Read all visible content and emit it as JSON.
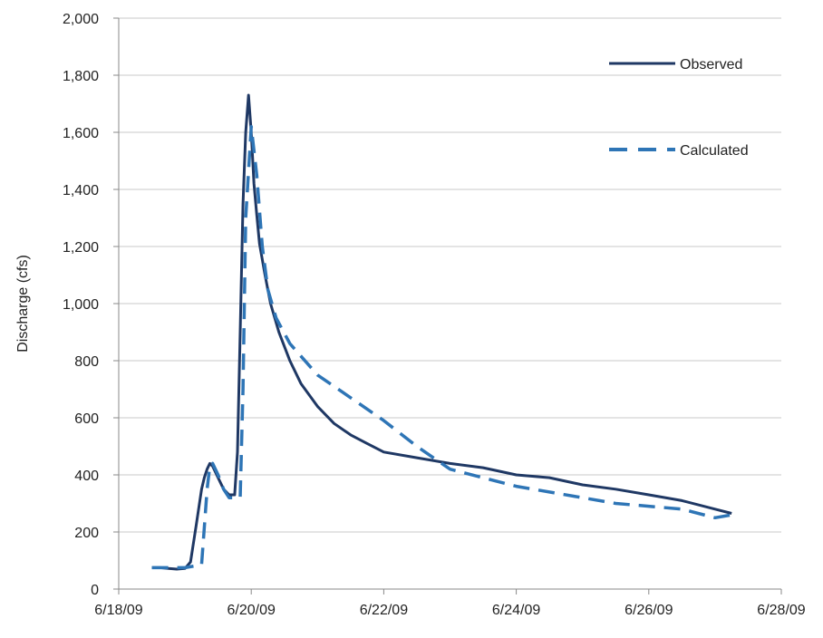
{
  "chart_data": {
    "type": "line",
    "title": "",
    "xlabel": "",
    "ylabel": "Discharge (cfs)",
    "x_axis": {
      "type": "date",
      "min": "2009-06-18",
      "max": "2009-06-28",
      "ticks": [
        "2009-06-18",
        "2009-06-20",
        "2009-06-22",
        "2009-06-24",
        "2009-06-26",
        "2009-06-28"
      ],
      "tick_labels": [
        "6/18/09",
        "6/20/09",
        "6/22/09",
        "6/24/09",
        "6/26/09",
        "6/28/09"
      ]
    },
    "y_axis": {
      "min": 0,
      "max": 2000,
      "ticks": [
        0,
        200,
        400,
        600,
        800,
        1000,
        1200,
        1400,
        1600,
        1800,
        2000
      ],
      "tick_labels": [
        "0",
        "200",
        "400",
        "600",
        "800",
        "1,000",
        "1,200",
        "1,400",
        "1,600",
        "1,800",
        "2,000"
      ]
    },
    "grid": "horizontal",
    "legend_position": "top-right",
    "series": [
      {
        "name": "Observed",
        "color": "#1f3864",
        "style": "solid",
        "points": [
          [
            "2009-06-18 12:00",
            75
          ],
          [
            "2009-06-18 15:00",
            75
          ],
          [
            "2009-06-18 18:00",
            72
          ],
          [
            "2009-06-18 21:00",
            70
          ],
          [
            "2009-06-19 00:00",
            72
          ],
          [
            "2009-06-19 02:00",
            95
          ],
          [
            "2009-06-19 04:00",
            220
          ],
          [
            "2009-06-19 06:00",
            350
          ],
          [
            "2009-06-19 07:00",
            390
          ],
          [
            "2009-06-19 08:00",
            420
          ],
          [
            "2009-06-19 09:00",
            440
          ],
          [
            "2009-06-19 10:00",
            430
          ],
          [
            "2009-06-19 12:00",
            390
          ],
          [
            "2009-06-19 14:00",
            350
          ],
          [
            "2009-06-19 16:00",
            330
          ],
          [
            "2009-06-19 18:00",
            330
          ],
          [
            "2009-06-19 19:00",
            480
          ],
          [
            "2009-06-19 20:00",
            900
          ],
          [
            "2009-06-19 21:00",
            1350
          ],
          [
            "2009-06-19 22:00",
            1600
          ],
          [
            "2009-06-19 23:00",
            1730
          ],
          [
            "2009-06-20 00:00",
            1600
          ],
          [
            "2009-06-20 01:00",
            1420
          ],
          [
            "2009-06-20 02:00",
            1310
          ],
          [
            "2009-06-20 03:00",
            1210
          ],
          [
            "2009-06-20 05:00",
            1100
          ],
          [
            "2009-06-20 07:00",
            1000
          ],
          [
            "2009-06-20 10:00",
            900
          ],
          [
            "2009-06-20 14:00",
            800
          ],
          [
            "2009-06-20 18:00",
            720
          ],
          [
            "2009-06-21 00:00",
            640
          ],
          [
            "2009-06-21 06:00",
            580
          ],
          [
            "2009-06-21 12:00",
            540
          ],
          [
            "2009-06-21 18:00",
            510
          ],
          [
            "2009-06-22 00:00",
            480
          ],
          [
            "2009-06-22 12:00",
            460
          ],
          [
            "2009-06-23 00:00",
            440
          ],
          [
            "2009-06-23 12:00",
            425
          ],
          [
            "2009-06-24 00:00",
            400
          ],
          [
            "2009-06-24 12:00",
            390
          ],
          [
            "2009-06-25 00:00",
            365
          ],
          [
            "2009-06-25 12:00",
            350
          ],
          [
            "2009-06-26 00:00",
            330
          ],
          [
            "2009-06-26 12:00",
            310
          ],
          [
            "2009-06-27 00:00",
            280
          ],
          [
            "2009-06-27 06:00",
            265
          ]
        ]
      },
      {
        "name": "Calculated",
        "color": "#2e75b6",
        "style": "dashed",
        "points": [
          [
            "2009-06-18 12:00",
            75
          ],
          [
            "2009-06-19 00:00",
            75
          ],
          [
            "2009-06-19 06:00",
            85
          ],
          [
            "2009-06-19 08:00",
            350
          ],
          [
            "2009-06-19 09:00",
            430
          ],
          [
            "2009-06-19 10:00",
            440
          ],
          [
            "2009-06-19 12:00",
            400
          ],
          [
            "2009-06-19 14:00",
            350
          ],
          [
            "2009-06-19 16:00",
            320
          ],
          [
            "2009-06-19 20:00",
            320
          ],
          [
            "2009-06-19 21:00",
            700
          ],
          [
            "2009-06-19 22:00",
            1300
          ],
          [
            "2009-06-20 00:00",
            1620
          ],
          [
            "2009-06-20 02:00",
            1450
          ],
          [
            "2009-06-20 04:00",
            1200
          ],
          [
            "2009-06-20 06:00",
            1050
          ],
          [
            "2009-06-20 09:00",
            950
          ],
          [
            "2009-06-20 14:00",
            860
          ],
          [
            "2009-06-21 00:00",
            750
          ],
          [
            "2009-06-21 12:00",
            670
          ],
          [
            "2009-06-22 00:00",
            590
          ],
          [
            "2009-06-22 12:00",
            500
          ],
          [
            "2009-06-23 00:00",
            420
          ],
          [
            "2009-06-24 00:00",
            360
          ],
          [
            "2009-06-25 00:00",
            320
          ],
          [
            "2009-06-25 12:00",
            300
          ],
          [
            "2009-06-26 00:00",
            290
          ],
          [
            "2009-06-26 12:00",
            280
          ],
          [
            "2009-06-27 00:00",
            250
          ],
          [
            "2009-06-27 06:00",
            260
          ]
        ]
      }
    ]
  }
}
